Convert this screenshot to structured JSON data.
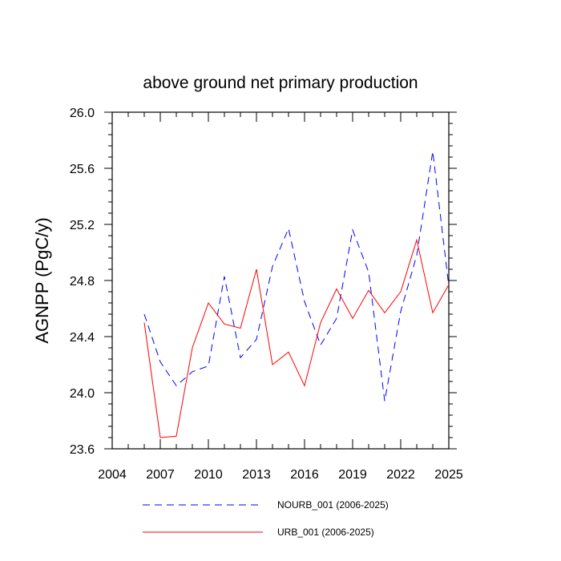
{
  "chart_data": {
    "type": "line",
    "title": "above ground net primary production",
    "xlabel": "",
    "ylabel": "AGNPP  (PgC/y)",
    "xlim": [
      2004,
      2025
    ],
    "ylim": [
      23.6,
      26.0
    ],
    "xticks": [
      2004,
      2007,
      2010,
      2013,
      2016,
      2019,
      2022,
      2025
    ],
    "yticks": [
      23.6,
      24.0,
      24.4,
      24.8,
      25.2,
      25.6,
      26.0
    ],
    "ytick_labels": [
      "23.6",
      "24.0",
      "24.4",
      "24.8",
      "25.2",
      "25.6",
      "26.0"
    ],
    "x": [
      2006,
      2007,
      2008,
      2009,
      2010,
      2011,
      2012,
      2013,
      2014,
      2015,
      2016,
      2017,
      2018,
      2019,
      2020,
      2021,
      2022,
      2023,
      2024,
      2025
    ],
    "series": [
      {
        "name": "NOURB_001 (2006-2025)",
        "color": "#0000ff",
        "dash": "dashed",
        "values": [
          24.56,
          24.22,
          24.05,
          24.15,
          24.19,
          24.83,
          24.25,
          24.38,
          24.9,
          25.17,
          24.65,
          24.34,
          24.53,
          25.16,
          24.86,
          23.94,
          24.58,
          24.98,
          25.72,
          24.76
        ]
      },
      {
        "name": "URB_001 (2006-2025)",
        "color": "#ff0000",
        "dash": "solid",
        "values": [
          24.5,
          23.68,
          23.69,
          24.32,
          24.64,
          24.49,
          24.46,
          24.88,
          24.2,
          24.29,
          24.05,
          24.5,
          24.74,
          24.53,
          24.73,
          24.57,
          24.72,
          25.09,
          24.57,
          24.77
        ]
      }
    ],
    "legend_position": "bottom"
  }
}
